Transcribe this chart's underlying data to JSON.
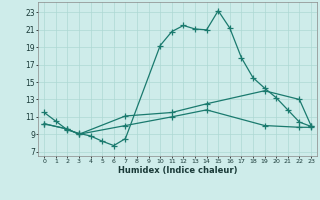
{
  "xlabel": "Humidex (Indice chaleur)",
  "background_color": "#ceecea",
  "grid_color": "#add8d4",
  "line_color": "#1a7a6e",
  "x_ticks": [
    0,
    1,
    2,
    3,
    4,
    5,
    6,
    7,
    8,
    9,
    10,
    11,
    12,
    13,
    14,
    15,
    16,
    17,
    18,
    19,
    20,
    21,
    22,
    23
  ],
  "y_ticks": [
    7,
    9,
    11,
    13,
    15,
    17,
    19,
    21,
    23
  ],
  "xlim": [
    -0.5,
    23.5
  ],
  "ylim": [
    6.5,
    24.2
  ],
  "line1_x": [
    0,
    1,
    2,
    3,
    4,
    5,
    6,
    7,
    10,
    11,
    12,
    13,
    14,
    15,
    16,
    17,
    18,
    19,
    20,
    21,
    22,
    23
  ],
  "line1_y": [
    11.5,
    10.5,
    9.5,
    9.1,
    8.8,
    8.2,
    7.7,
    8.5,
    19.2,
    20.8,
    21.5,
    21.1,
    21.0,
    23.2,
    21.2,
    17.8,
    15.5,
    14.3,
    13.2,
    11.8,
    10.4,
    9.9
  ],
  "line2_x": [
    0,
    2,
    3,
    7,
    11,
    14,
    19,
    22,
    23
  ],
  "line2_y": [
    10.2,
    9.6,
    9.0,
    11.1,
    11.5,
    12.5,
    14.0,
    13.0,
    10.0
  ],
  "line3_x": [
    0,
    2,
    3,
    7,
    11,
    14,
    19,
    22,
    23
  ],
  "line3_y": [
    10.2,
    9.6,
    9.0,
    10.0,
    11.0,
    11.8,
    10.0,
    9.8,
    9.8
  ]
}
